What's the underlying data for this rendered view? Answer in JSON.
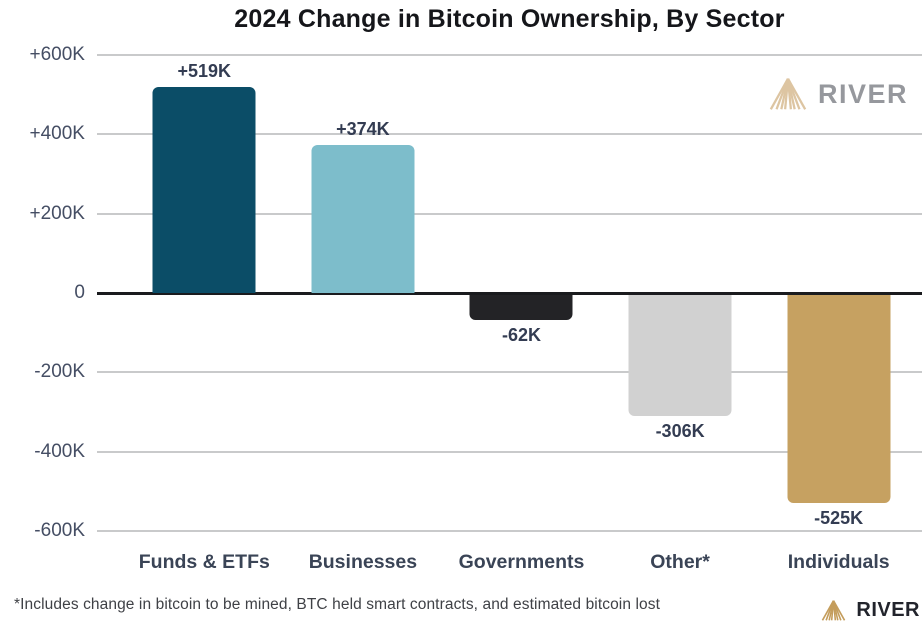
{
  "title": "2024 Change in Bitcoin Ownership, By Sector",
  "footnote": "*Includes change in bitcoin to be mined, BTC held smart contracts, and estimated bitcoin lost",
  "brand": {
    "name": "RIVER"
  },
  "colors": {
    "watermark_icon": "#ddc5a2",
    "watermark_text": "#96989d",
    "footer_icon": "#c49d5c",
    "footer_text": "#22242c",
    "gridline": "#c9cacb",
    "zero_line": "#1a1b1e",
    "axis_label": "#454e64",
    "value_label": "#333c52",
    "category_label": "#3a4456"
  },
  "chart_data": {
    "type": "bar",
    "title": "2024 Change in Bitcoin Ownership, By Sector",
    "categories": [
      "Funds & ETFs",
      "Businesses",
      "Governments",
      "Other*",
      "Individuals"
    ],
    "values": [
      519000,
      374000,
      -62000,
      -306000,
      -525000
    ],
    "value_labels": [
      "+519K",
      "+374K",
      "-62K",
      "-306K",
      "-525K"
    ],
    "bar_colors": [
      "#0b4d67",
      "#7dbdcb",
      "#232326",
      "#d1d1d1",
      "#c6a161"
    ],
    "xlabel": "",
    "ylabel": "",
    "ylim": [
      -600000,
      600000
    ],
    "yticks": [
      {
        "value": 600000,
        "label": "+600K"
      },
      {
        "value": 400000,
        "label": "+400K"
      },
      {
        "value": 200000,
        "label": "+200K"
      },
      {
        "value": 0,
        "label": "0"
      },
      {
        "value": -200000,
        "label": "-200K"
      },
      {
        "value": -400000,
        "label": "-400K"
      },
      {
        "value": -600000,
        "label": "-600K"
      }
    ],
    "grid": true,
    "legend": false
  }
}
